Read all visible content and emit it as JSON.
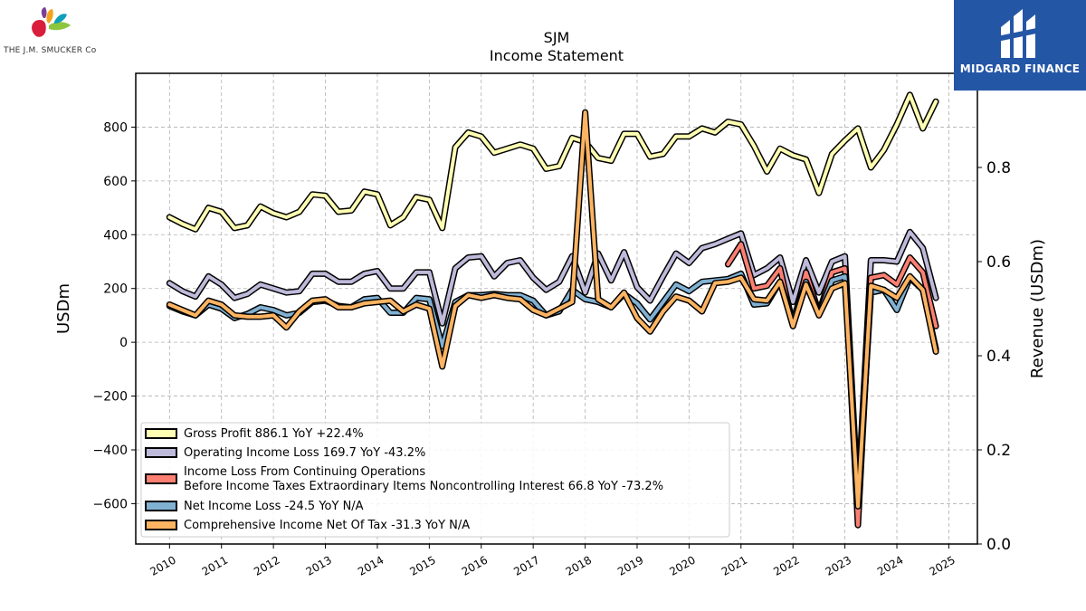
{
  "brand": {
    "left_logo_text": "THE J.M. SMUCKER Co",
    "right_logo_text": "MIDGARD FINANCE"
  },
  "chart_data": {
    "type": "line",
    "title": "SJM",
    "subtitle": "Income Statement",
    "ylabel": "USDm",
    "y2label": "Revenue (USDm)",
    "ylim": [
      -750,
      1000
    ],
    "yticks": [
      -600,
      -400,
      -200,
      0,
      200,
      400,
      600,
      800
    ],
    "y2lim": [
      0.0,
      1.0
    ],
    "y2ticks": [
      0.0,
      0.2,
      0.4,
      0.6,
      0.8
    ],
    "xlim": [
      2009.35,
      2025.55
    ],
    "xticks": [
      "2010",
      "2011",
      "2012",
      "2013",
      "2014",
      "2015",
      "2016",
      "2017",
      "2018",
      "2019",
      "2020",
      "2021",
      "2022",
      "2023",
      "2024",
      "2025"
    ],
    "grid": true,
    "legend_position": "lower-left",
    "x": [
      2010.0,
      2010.25,
      2010.5,
      2010.75,
      2011.0,
      2011.25,
      2011.5,
      2011.75,
      2012.0,
      2012.25,
      2012.5,
      2012.75,
      2013.0,
      2013.25,
      2013.5,
      2013.75,
      2014.0,
      2014.25,
      2014.5,
      2014.75,
      2015.0,
      2015.25,
      2015.5,
      2015.75,
      2016.0,
      2016.25,
      2016.5,
      2016.75,
      2017.0,
      2017.25,
      2017.5,
      2017.75,
      2018.0,
      2018.25,
      2018.5,
      2018.75,
      2019.0,
      2019.25,
      2019.5,
      2019.75,
      2020.0,
      2020.25,
      2020.5,
      2020.75,
      2021.0,
      2021.25,
      2021.5,
      2021.75,
      2022.0,
      2022.25,
      2022.5,
      2022.75,
      2023.0,
      2023.25,
      2023.5,
      2023.75,
      2024.0,
      2024.25,
      2024.5,
      2024.75
    ],
    "series": [
      {
        "name": "Gross Profit",
        "legend": "Gross Profit  886.1 YoY +22.4%",
        "color": "#ffffb3",
        "values": [
          465,
          440,
          420,
          500,
          485,
          425,
          435,
          505,
          480,
          465,
          485,
          550,
          545,
          485,
          490,
          560,
          550,
          435,
          465,
          540,
          530,
          425,
          725,
          780,
          765,
          705,
          720,
          735,
          720,
          645,
          655,
          760,
          745,
          685,
          675,
          775,
          775,
          690,
          700,
          765,
          765,
          795,
          780,
          820,
          810,
          730,
          635,
          720,
          695,
          680,
          555,
          700,
          750,
          795,
          650,
          715,
          810,
          920,
          795,
          895
        ]
      },
      {
        "name": "Operating Income Loss",
        "legend": "Operating Income Loss  169.7 YoY -43.2%",
        "color": "#bebada",
        "values": [
          220,
          190,
          170,
          245,
          215,
          165,
          180,
          215,
          200,
          185,
          190,
          255,
          255,
          225,
          225,
          255,
          265,
          200,
          200,
          260,
          260,
          70,
          275,
          315,
          320,
          245,
          295,
          305,
          240,
          195,
          225,
          320,
          185,
          330,
          230,
          335,
          205,
          155,
          245,
          330,
          295,
          350,
          365,
          385,
          405,
          250,
          275,
          315,
          150,
          305,
          185,
          300,
          320,
          -580,
          305,
          305,
          300,
          410,
          350,
          165
        ]
      },
      {
        "name": "Income Loss From Continuing Operations Before Income Taxes Extraordinary Items Noncontrolling Interest",
        "legend_line1": "Income Loss From Continuing Operations",
        "legend_line2": "Before Income Taxes Extraordinary Items Noncontrolling Interest  66.8 YoY -73.2%",
        "color": "#fb8072",
        "values": [
          null,
          null,
          null,
          null,
          null,
          null,
          null,
          null,
          null,
          null,
          null,
          null,
          null,
          null,
          null,
          null,
          null,
          null,
          null,
          null,
          null,
          null,
          null,
          null,
          null,
          null,
          null,
          null,
          null,
          null,
          null,
          null,
          null,
          null,
          null,
          null,
          null,
          null,
          null,
          null,
          null,
          null,
          null,
          290,
          365,
          200,
          210,
          275,
          65,
          260,
          110,
          260,
          275,
          -680,
          240,
          250,
          215,
          315,
          260,
          60
        ]
      },
      {
        "name": "Net Income Loss",
        "legend": "Net Income Loss  -24.5 YoY N/A",
        "color": "#80b1d3",
        "values": [
          135,
          115,
          100,
          140,
          125,
          90,
          105,
          130,
          120,
          100,
          110,
          150,
          155,
          135,
          130,
          160,
          165,
          110,
          110,
          165,
          160,
          -15,
          150,
          175,
          175,
          180,
          175,
          175,
          155,
          100,
          115,
          195,
          160,
          150,
          130,
          180,
          145,
          85,
          150,
          215,
          190,
          225,
          230,
          235,
          255,
          140,
          145,
          225,
          80,
          225,
          105,
          230,
          245,
          -600,
          185,
          195,
          120,
          240,
          195,
          -25
        ]
      },
      {
        "name": "Comprehensive Income Net Of Tax",
        "legend": "Comprehensive Income Net Of Tax  -31.3 YoY N/A",
        "color": "#fdb462",
        "values": [
          140,
          120,
          100,
          155,
          140,
          100,
          95,
          95,
          100,
          55,
          115,
          155,
          160,
          130,
          130,
          145,
          150,
          155,
          115,
          140,
          125,
          -90,
          135,
          175,
          165,
          175,
          165,
          160,
          120,
          100,
          125,
          150,
          855,
          160,
          130,
          185,
          90,
          40,
          115,
          170,
          155,
          115,
          220,
          225,
          240,
          160,
          155,
          225,
          60,
          215,
          100,
          200,
          220,
          -610,
          210,
          195,
          165,
          245,
          195,
          -35
        ]
      }
    ]
  }
}
